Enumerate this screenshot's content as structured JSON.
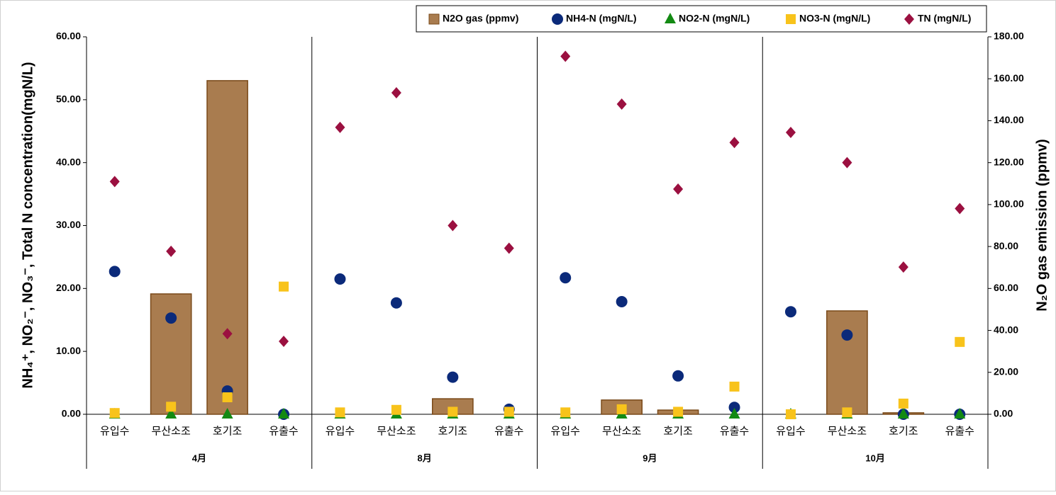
{
  "chart_data": {
    "type": "bar",
    "categories": [
      "유입수",
      "무산소조",
      "호기조",
      "유출수",
      "유입수",
      "무산소조",
      "호기조",
      "유출수",
      "유입수",
      "무산소조",
      "호기조",
      "유출수",
      "유입수",
      "무산소조",
      "호기조",
      "유출수"
    ],
    "groups": [
      "4月",
      "8月",
      "9月",
      "10月"
    ],
    "y_label": "NH₄⁺, NO₂⁻, NO₃⁻, Total N concentration(mgN/L)",
    "y2_label": "N₂O gas emission (ppmv)",
    "ylim": [
      0,
      60
    ],
    "yticks": [
      {
        "value": 0,
        "label": "0.00"
      },
      {
        "value": 10,
        "label": "10.00"
      },
      {
        "value": 20,
        "label": "20.00"
      },
      {
        "value": 30,
        "label": "30.00"
      },
      {
        "value": 40,
        "label": "40.00"
      },
      {
        "value": 50,
        "label": "50.00"
      },
      {
        "value": 60,
        "label": "60.00"
      }
    ],
    "y2lim": [
      0,
      180
    ],
    "y2ticks": [
      {
        "value": 0,
        "label": "0.00"
      },
      {
        "value": 20,
        "label": "20.00"
      },
      {
        "value": 40,
        "label": "40.00"
      },
      {
        "value": 60,
        "label": "60.00"
      },
      {
        "value": 80,
        "label": "80.00"
      },
      {
        "value": 100,
        "label": "100.00"
      },
      {
        "value": 120,
        "label": "120.00"
      },
      {
        "value": 140,
        "label": "140.00"
      },
      {
        "value": 160,
        "label": "160.00"
      },
      {
        "value": 180,
        "label": "180.00"
      }
    ],
    "legend": "top-right",
    "series": [
      {
        "name": "N2O gas (ppmv)",
        "type": "bar",
        "axis": "y2",
        "color": "#a97c4f",
        "values": [
          0,
          57.4,
          159.1,
          0,
          0,
          0,
          7.4,
          0,
          0,
          6.8,
          2.0,
          0,
          0,
          49.3,
          0.7,
          0
        ]
      },
      {
        "name": "NH4-N (mgN/L)",
        "type": "scatter",
        "marker": "circle",
        "color": "#0b2a7a",
        "values": [
          22.7,
          15.3,
          3.7,
          0,
          21.5,
          17.7,
          5.9,
          0.8,
          21.7,
          17.9,
          6.1,
          1.1,
          16.3,
          12.6,
          0,
          0
        ]
      },
      {
        "name": "NO2-N (mgN/L)",
        "type": "scatter",
        "marker": "triangle",
        "color": "#138a13",
        "values": [
          0,
          0,
          0,
          0,
          0,
          0,
          0,
          0,
          0,
          0,
          0,
          0,
          0,
          0,
          0,
          0
        ]
      },
      {
        "name": "NO3-N (mgN/L)",
        "type": "scatter",
        "marker": "square",
        "color": "#f8c31b",
        "values": [
          0.2,
          1.2,
          2.7,
          20.3,
          0.3,
          0.7,
          0.4,
          0.4,
          0.3,
          0.8,
          0.4,
          4.4,
          0,
          0.3,
          1.7,
          11.5
        ]
      },
      {
        "name": "TN (mgN/L)",
        "type": "scatter",
        "marker": "diamond",
        "color": "#9b1040",
        "values": [
          37.0,
          25.9,
          12.8,
          11.6,
          45.6,
          51.1,
          30.0,
          26.4,
          56.9,
          49.3,
          35.8,
          43.2,
          44.8,
          40.0,
          23.4,
          32.7
        ]
      }
    ]
  }
}
